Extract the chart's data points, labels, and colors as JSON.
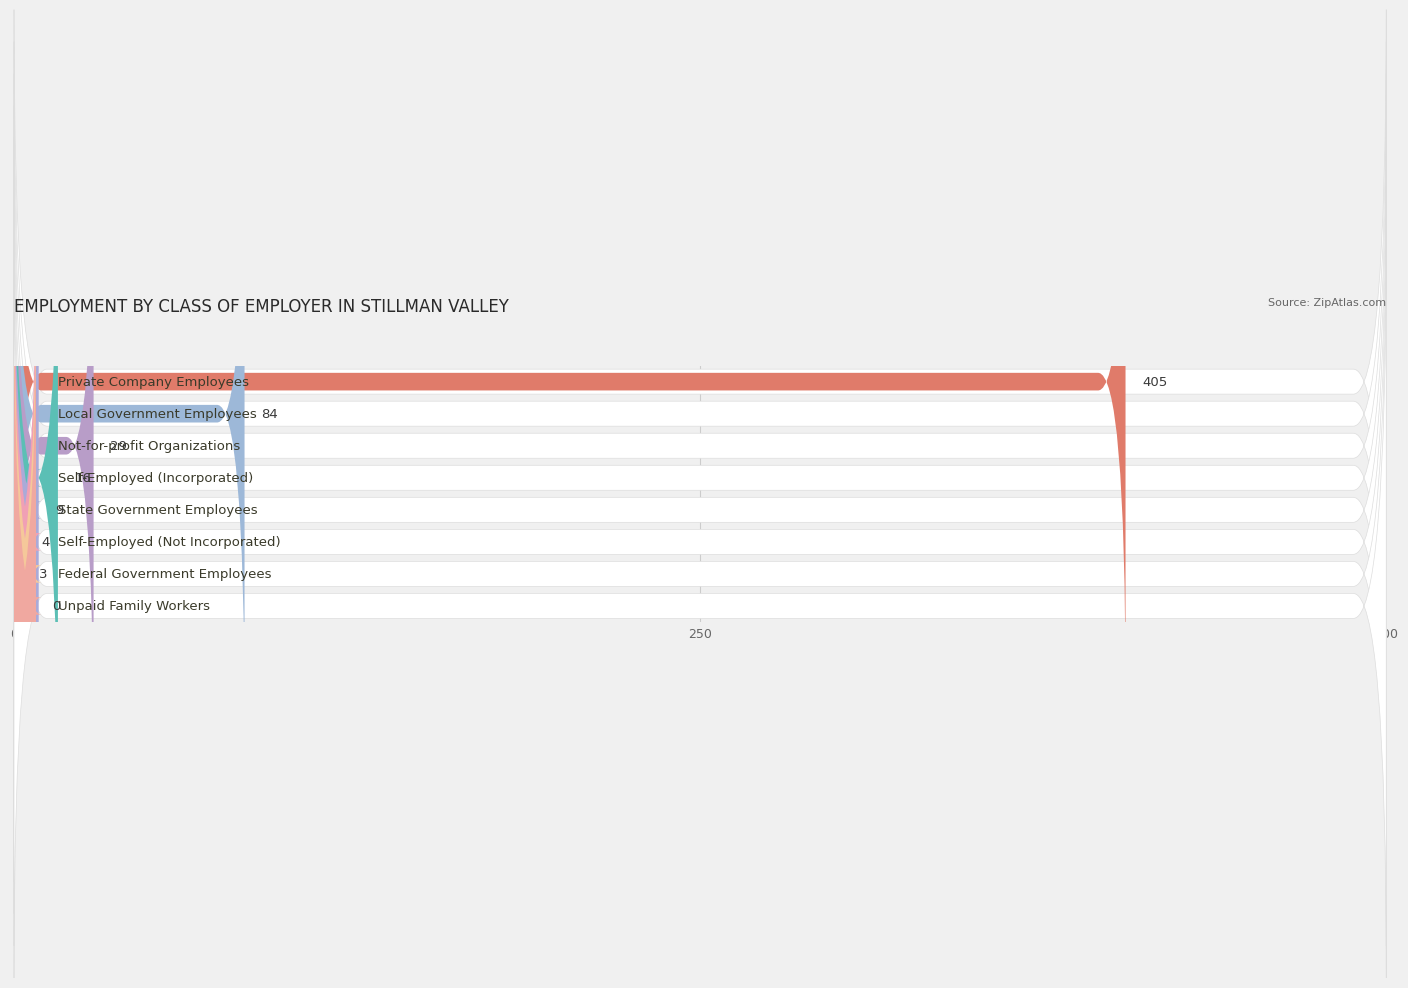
{
  "title": "EMPLOYMENT BY CLASS OF EMPLOYER IN STILLMAN VALLEY",
  "source": "Source: ZipAtlas.com",
  "categories": [
    "Private Company Employees",
    "Local Government Employees",
    "Not-for-profit Organizations",
    "Self-Employed (Incorporated)",
    "State Government Employees",
    "Self-Employed (Not Incorporated)",
    "Federal Government Employees",
    "Unpaid Family Workers"
  ],
  "values": [
    405,
    84,
    29,
    16,
    9,
    4,
    3,
    0
  ],
  "bar_colors": [
    "#e07b6a",
    "#9db8d8",
    "#b89dc8",
    "#5bbfb5",
    "#aaaad8",
    "#f0a0b5",
    "#f5c89a",
    "#f0a8a0"
  ],
  "xlim_max": 500,
  "xticks": [
    0,
    250,
    500
  ],
  "background_color": "#f0f0f0",
  "row_bg_color": "#ffffff",
  "title_fontsize": 12,
  "label_fontsize": 9.5,
  "value_fontsize": 9.5
}
